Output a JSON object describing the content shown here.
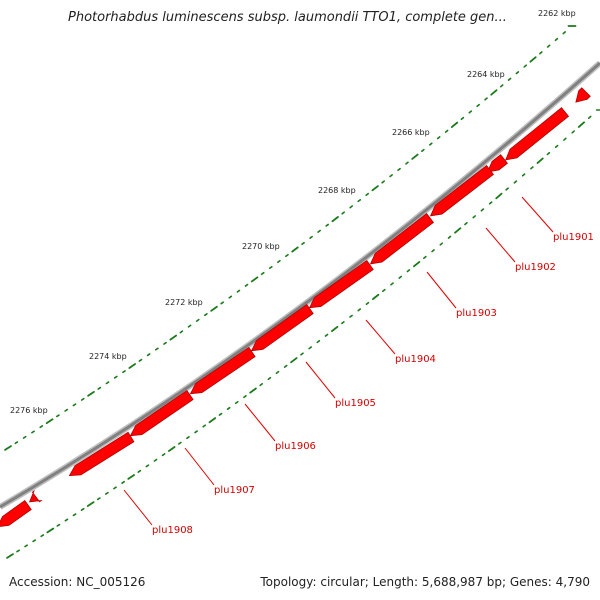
{
  "title": "Photorhabdus luminescens subsp. laumondii TTO1, complete gen...",
  "footer": {
    "accession": "Accession: NC_005126",
    "summary": "Topology: circular; Length: 5,688,987 bp; Genes: 4,790"
  },
  "colors": {
    "backbone": "#808080",
    "gene_fill": "#ff0000",
    "gene_shade": "#b00000",
    "tick": "#1a7a1a",
    "gene_label": "#d40000",
    "leader": "#e00000"
  },
  "scale_labels": [
    "2262 kbp",
    "2264 kbp",
    "2266 kbp",
    "2268 kbp",
    "2270 kbp",
    "2272 kbp",
    "2274 kbp",
    "2276 kbp"
  ],
  "genes": [
    "plu1901",
    "plu1902",
    "plu1903",
    "plu1904",
    "plu1905",
    "plu1906",
    "plu1907",
    "plu1908"
  ]
}
